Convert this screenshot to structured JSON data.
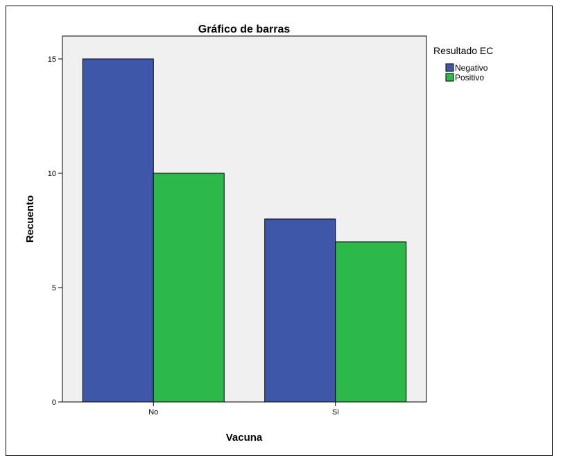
{
  "chart_data": {
    "type": "bar",
    "title": "Gráfico de barras",
    "xlabel": "Vacuna",
    "ylabel": "Recuento",
    "categories": [
      "No",
      "Si"
    ],
    "series": [
      {
        "name": "Negativo",
        "values": [
          15,
          8
        ],
        "color": "#3f57a8"
      },
      {
        "name": "Positivo",
        "values": [
          10,
          7
        ],
        "color": "#2db84a"
      }
    ],
    "ylim": [
      0,
      16
    ],
    "yticks": [
      0,
      5,
      10,
      15
    ],
    "legend_title": "Resultado EC",
    "legend_position": "top-right",
    "grid": false,
    "plot_background": "#f0f0f0"
  }
}
